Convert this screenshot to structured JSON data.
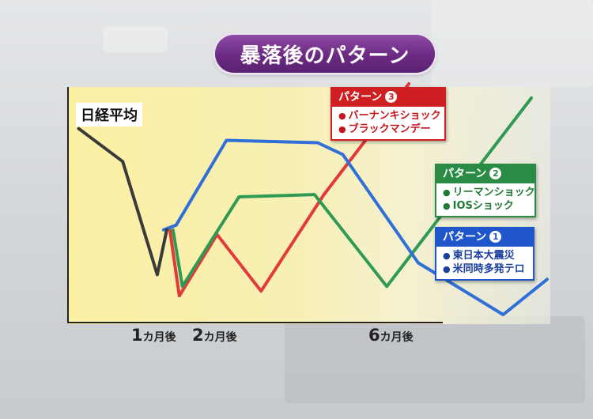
{
  "title": "暴落後のパターン",
  "chart_data": {
    "type": "line",
    "axis_title": "日経平均",
    "x_ticks": [
      {
        "x": 1,
        "num": "1",
        "unit": "カ月後"
      },
      {
        "x": 2,
        "num": "2",
        "unit": "カ月後"
      },
      {
        "x": 6,
        "num": "6",
        "unit": "カ月後"
      }
    ],
    "xlim": [
      -1.37,
      6.3
    ],
    "ylim": [
      0,
      100
    ],
    "grid": false,
    "series": [
      {
        "name": "日経平均",
        "color": "#3a3a3a",
        "points": [
          [
            -1.2,
            81
          ],
          [
            -0.5,
            67
          ],
          [
            0.05,
            19
          ],
          [
            0.2,
            38
          ]
        ]
      },
      {
        "name": "パターン1",
        "color": "#2f6fd8",
        "points": [
          [
            0.15,
            38
          ],
          [
            0.35,
            40
          ],
          [
            1.15,
            76
          ],
          [
            2.6,
            75
          ],
          [
            3.0,
            70
          ],
          [
            4.2,
            24
          ],
          [
            5.55,
            2
          ],
          [
            6.25,
            17
          ]
        ]
      },
      {
        "name": "パターン2",
        "color": "#2f9a54",
        "points": [
          [
            0.3,
            38
          ],
          [
            0.45,
            14
          ],
          [
            1.35,
            52
          ],
          [
            2.55,
            53
          ],
          [
            3.7,
            14
          ],
          [
            6.0,
            94
          ]
        ]
      },
      {
        "name": "パターン3",
        "color": "#e23a3a",
        "points": [
          [
            0.25,
            38
          ],
          [
            0.4,
            10
          ],
          [
            1.0,
            36
          ],
          [
            1.7,
            12
          ],
          [
            2.7,
            53
          ],
          [
            4.05,
            100
          ]
        ]
      }
    ]
  },
  "legends": {
    "p3": {
      "label": "パターン",
      "num": "3",
      "items": [
        "バーナンキショック",
        "ブラックマンデー"
      ]
    },
    "p2": {
      "label": "パターン",
      "num": "2",
      "items": [
        "リーマンショック",
        "IOSショック"
      ]
    },
    "p1": {
      "label": "パターン",
      "num": "1",
      "items": [
        "東日本大震災",
        "米同時多発テロ"
      ]
    }
  }
}
